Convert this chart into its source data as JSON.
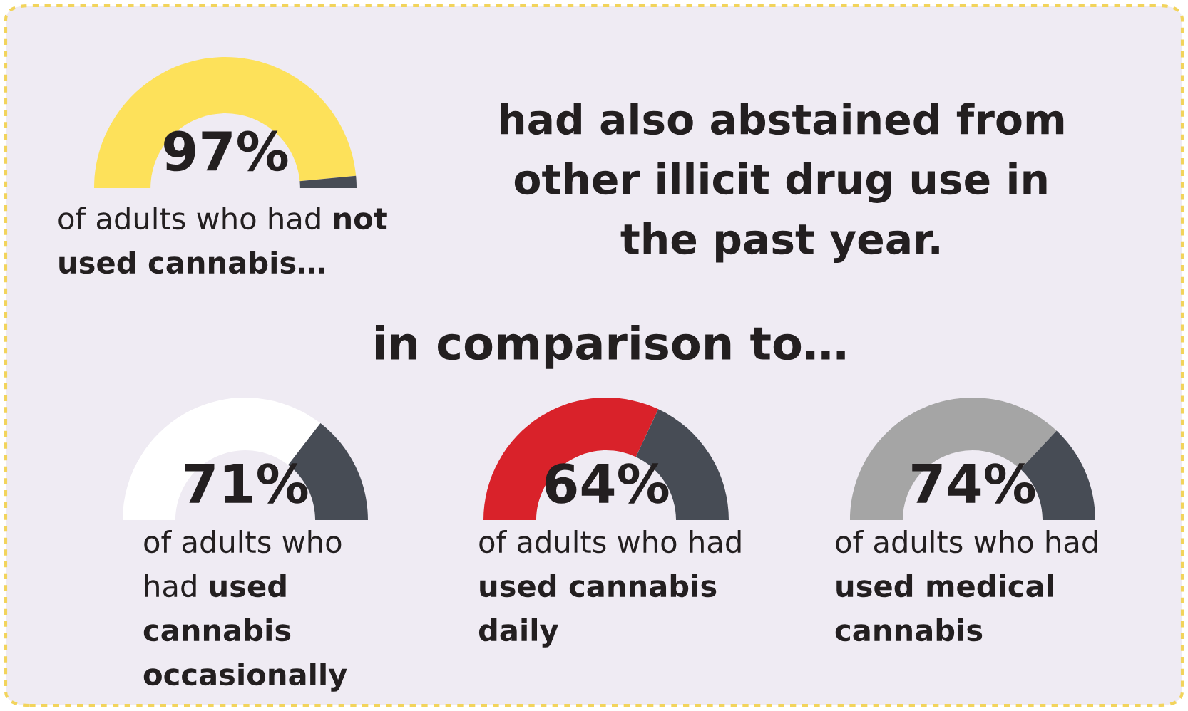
{
  "chart_data": [
    {
      "type": "donut",
      "categories": [
        null,
        null
      ],
      "values": [
        97,
        3
      ],
      "colors": [
        "#fde15a",
        "#474c55"
      ],
      "value_labels": [
        "97%",
        null
      ],
      "annotations": [
        "of adults who had",
        "not used cannabis…"
      ]
    },
    {
      "type": "other",
      "annotations": [
        "had also abstained from other illicit drug use in the past year.",
        "in comparison to…"
      ]
    },
    {
      "type": "donut",
      "categories": [
        null,
        null
      ],
      "values": [
        71,
        29
      ],
      "colors": [
        "#ffffff",
        "#474c55"
      ],
      "value_labels": [
        "71%",
        null
      ],
      "annotations": [
        "of adults who had",
        "used cannabis occasionally"
      ]
    },
    {
      "type": "donut",
      "categories": [
        null,
        null
      ],
      "values": [
        64,
        36
      ],
      "colors": [
        "#d9222a",
        "#474c55"
      ],
      "value_labels": [
        "64%",
        null
      ],
      "annotations": [
        "of adults who had",
        "used cannabis daily"
      ]
    },
    {
      "type": "donut",
      "categories": [
        null,
        null
      ],
      "values": [
        74,
        26
      ],
      "colors": [
        "#a5a5a5",
        "#474c55"
      ],
      "value_labels": [
        "74%",
        null
      ],
      "annotations": [
        "of adults who had",
        "used medical cannabis"
      ]
    }
  ]
}
